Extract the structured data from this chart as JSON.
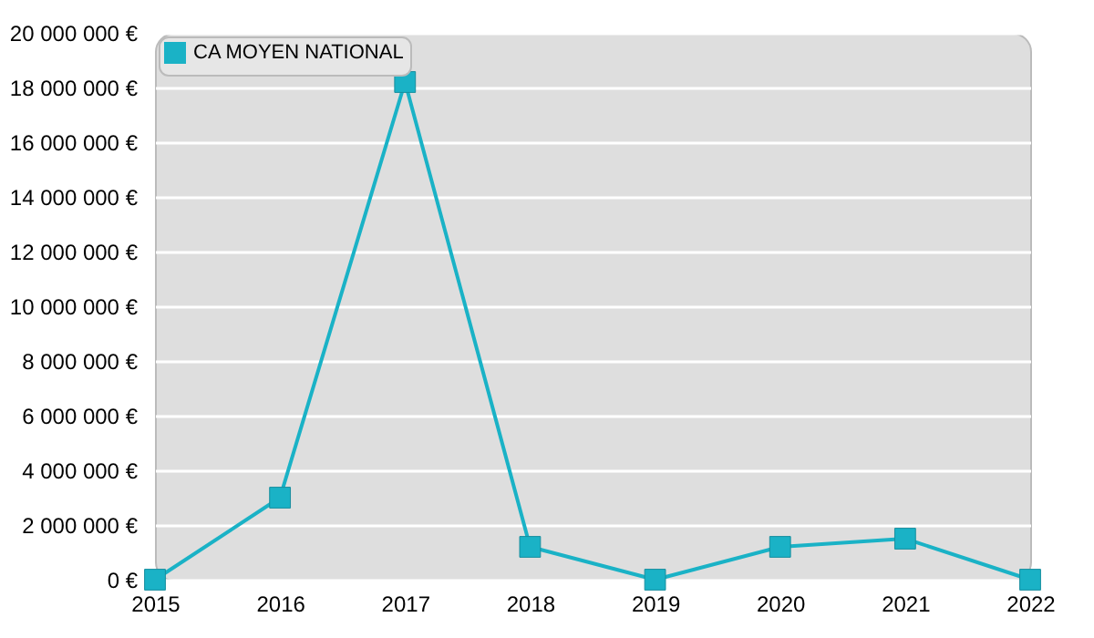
{
  "chart_data": {
    "type": "line",
    "x": [
      2015,
      2016,
      2017,
      2018,
      2019,
      2020,
      2021,
      2022
    ],
    "series": [
      {
        "name": "CA MOYEN NATIONAL",
        "color": "#1ab2c6",
        "values": [
          0,
          3000000,
          18200000,
          1200000,
          0,
          1200000,
          1500000,
          0
        ]
      }
    ],
    "xlim": [
      2015,
      2022
    ],
    "xticks": [
      2015,
      2016,
      2017,
      2018,
      2019,
      2020,
      2021,
      2022
    ],
    "ylim": [
      0,
      20000000
    ],
    "yticks": [
      {
        "value": 0,
        "label": "0 €"
      },
      {
        "value": 2000000,
        "label": "2 000 000 €"
      },
      {
        "value": 4000000,
        "label": "4 000 000 €"
      },
      {
        "value": 6000000,
        "label": "6 000 000 €"
      },
      {
        "value": 8000000,
        "label": "8 000 000 €"
      },
      {
        "value": 10000000,
        "label": "10 000 000 €"
      },
      {
        "value": 12000000,
        "label": "12 000 000 €"
      },
      {
        "value": 14000000,
        "label": "14 000 000 €"
      },
      {
        "value": 16000000,
        "label": "16 000 000 €"
      },
      {
        "value": 18000000,
        "label": "18 000 000 €"
      },
      {
        "value": 20000000,
        "label": "20 000 000 €"
      }
    ],
    "grid": "y",
    "legend": "top left",
    "marker": "square",
    "line_style": "solid"
  }
}
